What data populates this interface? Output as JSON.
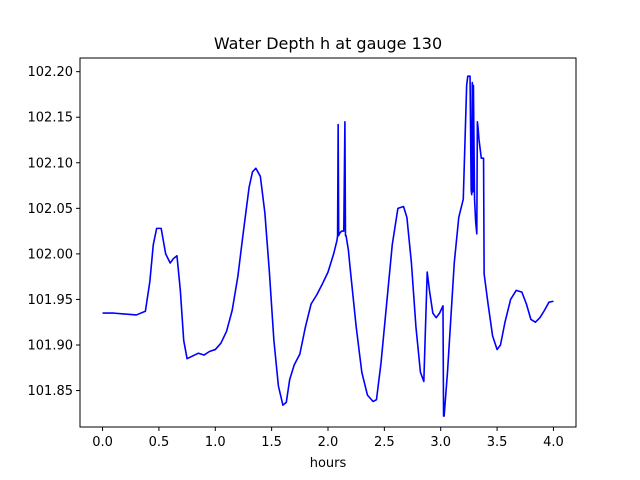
{
  "chart_data": {
    "type": "line",
    "title": "Water Depth h at gauge 130",
    "xlabel": "hours",
    "ylabel": "",
    "xlim": [
      -0.2,
      4.2
    ],
    "ylim": [
      101.81,
      102.215
    ],
    "xticks": [
      0.0,
      0.5,
      1.0,
      1.5,
      2.0,
      2.5,
      3.0,
      3.5,
      4.0
    ],
    "xtick_labels": [
      "0.0",
      "0.5",
      "1.0",
      "1.5",
      "2.0",
      "2.5",
      "3.0",
      "3.5",
      "4.0"
    ],
    "yticks": [
      101.85,
      101.9,
      101.95,
      102.0,
      102.05,
      102.1,
      102.15,
      102.2
    ],
    "ytick_labels": [
      "101.85",
      "101.90",
      "101.95",
      "102.00",
      "102.05",
      "102.10",
      "102.15",
      "102.20"
    ],
    "grid": false,
    "series": [
      {
        "name": "",
        "color": "#0000ff",
        "x": [
          0.0,
          0.1,
          0.2,
          0.3,
          0.38,
          0.42,
          0.45,
          0.48,
          0.52,
          0.56,
          0.6,
          0.63,
          0.66,
          0.69,
          0.72,
          0.75,
          0.8,
          0.85,
          0.9,
          0.95,
          1.0,
          1.05,
          1.1,
          1.15,
          1.2,
          1.25,
          1.3,
          1.33,
          1.36,
          1.4,
          1.44,
          1.48,
          1.52,
          1.56,
          1.6,
          1.63,
          1.66,
          1.7,
          1.75,
          1.8,
          1.85,
          1.9,
          1.95,
          2.0,
          2.05,
          2.08,
          2.085,
          2.09,
          2.095,
          2.1,
          2.12,
          2.14,
          2.15,
          2.155,
          2.16,
          2.18,
          2.2,
          2.25,
          2.3,
          2.35,
          2.4,
          2.43,
          2.47,
          2.52,
          2.57,
          2.62,
          2.67,
          2.7,
          2.74,
          2.78,
          2.82,
          2.85,
          2.88,
          2.89,
          2.9,
          2.93,
          2.96,
          2.99,
          3.02,
          3.025,
          3.03,
          3.035,
          3.06,
          3.09,
          3.12,
          3.16,
          3.2,
          3.23,
          3.235,
          3.24,
          3.26,
          3.27,
          3.275,
          3.28,
          3.285,
          3.29,
          3.3,
          3.31,
          3.32,
          3.325,
          3.33,
          3.34,
          3.36,
          3.38,
          3.385,
          3.42,
          3.46,
          3.5,
          3.53,
          3.57,
          3.62,
          3.67,
          3.72,
          3.76,
          3.8,
          3.84,
          3.88,
          3.92,
          3.96,
          4.0
        ],
        "y": [
          101.935,
          101.935,
          101.934,
          101.933,
          101.937,
          101.97,
          102.01,
          102.028,
          102.028,
          102.0,
          101.99,
          101.995,
          101.998,
          101.96,
          101.905,
          101.885,
          101.888,
          101.891,
          101.889,
          101.893,
          101.895,
          101.902,
          101.915,
          101.938,
          101.975,
          102.025,
          102.073,
          102.09,
          102.094,
          102.085,
          102.045,
          101.98,
          101.905,
          101.855,
          101.834,
          101.837,
          101.862,
          101.878,
          101.89,
          101.92,
          101.945,
          101.955,
          101.967,
          101.98,
          102.0,
          102.015,
          102.02,
          102.142,
          102.02,
          102.022,
          102.025,
          102.025,
          102.145,
          102.02,
          102.02,
          102.005,
          101.98,
          101.92,
          101.87,
          101.845,
          101.838,
          101.84,
          101.88,
          101.945,
          102.01,
          102.05,
          102.052,
          102.04,
          101.99,
          101.92,
          101.87,
          101.86,
          101.98,
          101.97,
          101.96,
          101.935,
          101.93,
          101.935,
          101.943,
          101.822,
          101.822,
          101.83,
          101.87,
          101.93,
          101.99,
          102.04,
          102.06,
          102.185,
          102.19,
          102.195,
          102.195,
          102.07,
          102.065,
          102.188,
          102.068,
          102.185,
          102.06,
          102.035,
          102.022,
          102.145,
          102.14,
          102.125,
          102.105,
          102.105,
          101.978,
          101.945,
          101.91,
          101.895,
          101.9,
          101.925,
          101.95,
          101.96,
          101.958,
          101.945,
          101.928,
          101.925,
          101.93,
          101.938,
          101.947,
          101.948
        ]
      }
    ]
  }
}
